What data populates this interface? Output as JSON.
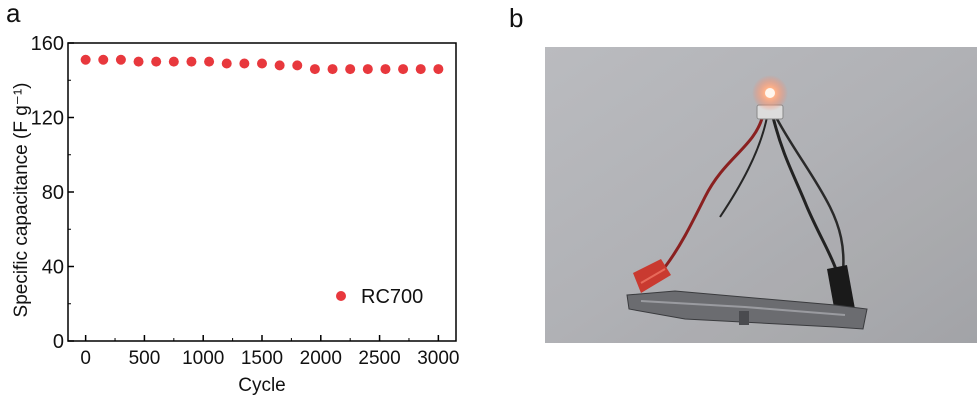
{
  "panels": {
    "a_label": "a",
    "b_label": "b"
  },
  "chart_data": {
    "type": "scatter",
    "xlabel": "Cycle",
    "ylabel": "Specific capacitance (F g⁻¹)",
    "xlim": [
      -150,
      3150
    ],
    "ylim": [
      0,
      160
    ],
    "xticks": [
      0,
      500,
      1000,
      1500,
      2000,
      2500,
      3000
    ],
    "yticks": [
      0,
      40,
      80,
      120,
      160
    ],
    "grid": false,
    "legend_position": "bottom-right",
    "series": [
      {
        "name": "RC700",
        "color": "#e8383d",
        "x": [
          0,
          150,
          300,
          450,
          600,
          750,
          900,
          1050,
          1200,
          1350,
          1500,
          1650,
          1800,
          1950,
          2100,
          2250,
          2400,
          2550,
          2700,
          2850,
          3000
        ],
        "y": [
          151,
          151,
          151,
          150,
          150,
          150,
          150,
          150,
          149,
          149,
          149,
          148,
          148,
          146,
          146,
          146,
          146,
          146,
          146,
          146,
          146
        ]
      }
    ]
  }
}
